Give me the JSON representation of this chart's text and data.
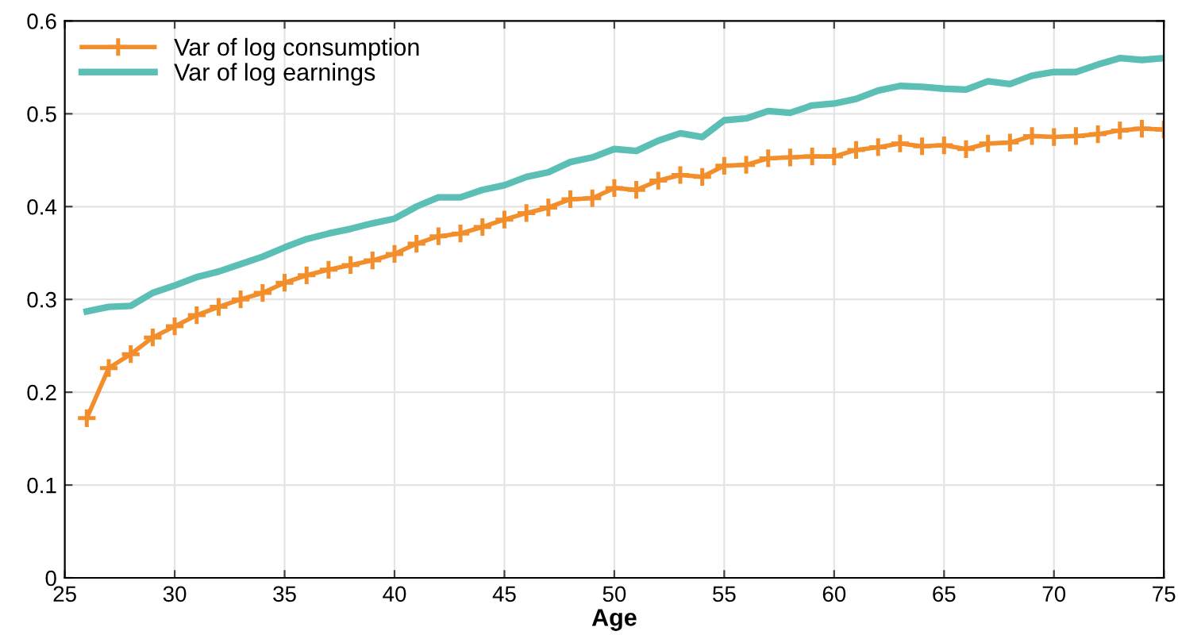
{
  "chart_data": {
    "type": "line",
    "xlabel": "Age",
    "x": [
      26,
      27,
      28,
      29,
      30,
      31,
      32,
      33,
      34,
      35,
      36,
      37,
      38,
      39,
      40,
      41,
      42,
      43,
      44,
      45,
      46,
      47,
      48,
      49,
      50,
      51,
      52,
      53,
      54,
      55,
      56,
      57,
      58,
      59,
      60,
      61,
      62,
      63,
      64,
      65,
      66,
      67,
      68,
      69,
      70,
      71,
      72,
      73,
      74,
      75
    ],
    "series": [
      {
        "name": "Var of log consumption",
        "color": "#f28e2b",
        "marker": "cross",
        "values": [
          0.172,
          0.226,
          0.241,
          0.259,
          0.271,
          0.283,
          0.292,
          0.3,
          0.307,
          0.318,
          0.326,
          0.332,
          0.337,
          0.342,
          0.349,
          0.36,
          0.368,
          0.371,
          0.378,
          0.386,
          0.393,
          0.399,
          0.408,
          0.409,
          0.42,
          0.418,
          0.428,
          0.434,
          0.432,
          0.444,
          0.445,
          0.452,
          0.453,
          0.454,
          0.454,
          0.461,
          0.464,
          0.468,
          0.465,
          0.466,
          0.462,
          0.468,
          0.469,
          0.476,
          0.475,
          0.476,
          0.478,
          0.482,
          0.484,
          0.483
        ]
      },
      {
        "name": "Var of log earnings",
        "color": "#5bbfb5",
        "values": [
          0.287,
          0.292,
          0.293,
          0.307,
          0.315,
          0.324,
          0.33,
          0.338,
          0.346,
          0.356,
          0.365,
          0.371,
          0.376,
          0.382,
          0.387,
          0.4,
          0.41,
          0.41,
          0.418,
          0.423,
          0.432,
          0.437,
          0.448,
          0.453,
          0.462,
          0.46,
          0.471,
          0.479,
          0.475,
          0.493,
          0.495,
          0.503,
          0.501,
          0.509,
          0.511,
          0.516,
          0.525,
          0.53,
          0.529,
          0.527,
          0.526,
          0.535,
          0.532,
          0.541,
          0.545,
          0.545,
          0.553,
          0.56,
          0.558,
          0.56
        ]
      }
    ],
    "xlim": [
      25,
      75
    ],
    "xticks": [
      25,
      30,
      35,
      40,
      45,
      50,
      55,
      60,
      65,
      70,
      75
    ],
    "ylim": [
      0,
      0.6
    ],
    "yticks": [
      0,
      0.1,
      0.2,
      0.3,
      0.4,
      0.5,
      0.6
    ],
    "grid": true,
    "legend": "top left"
  }
}
